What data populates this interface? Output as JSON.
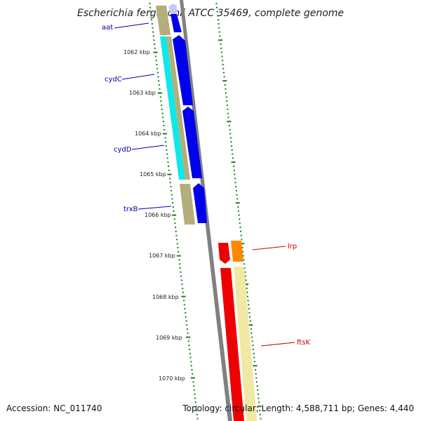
{
  "title": "Escherichia fergusonii ATCC 35469, complete genome",
  "footer": {
    "accession": "Accession: NC_011740",
    "topology": "Topology: circular; Length: 4,588,711 bp; Genes: 4,440"
  },
  "colors": {
    "cds_forward": "#0000ee",
    "cds_forward_faint": "#c8c8f6",
    "cds_reverse": "#ee0000",
    "cds_reverse_alt": "#ff8800",
    "gene_olive": "#b4ad7c",
    "gene_cyan": "#10e8e8",
    "gene_cream": "#f1e8a4",
    "backbone": "#808080",
    "tick": "#1a7a1a",
    "forward_label": "#0000aa",
    "reverse_label": "#cc0000"
  },
  "scale": {
    "ticks": [
      {
        "label": "1062 kbp"
      },
      {
        "label": "1063 kbp"
      },
      {
        "label": "1064 kbp"
      },
      {
        "label": "1065 kbp"
      },
      {
        "label": "1066 kbp"
      },
      {
        "label": "1067 kbp"
      },
      {
        "label": "1068 kbp"
      },
      {
        "label": "1069 kbp"
      },
      {
        "label": "1070 kbp"
      }
    ]
  },
  "genes": [
    {
      "label": "aat",
      "strand": "forward"
    },
    {
      "label": "cydC",
      "strand": "forward"
    },
    {
      "label": "cydD",
      "strand": "forward"
    },
    {
      "label": "trxB",
      "strand": "forward"
    },
    {
      "label": "lrp",
      "strand": "reverse"
    },
    {
      "label": "ftsK",
      "strand": "reverse"
    }
  ]
}
